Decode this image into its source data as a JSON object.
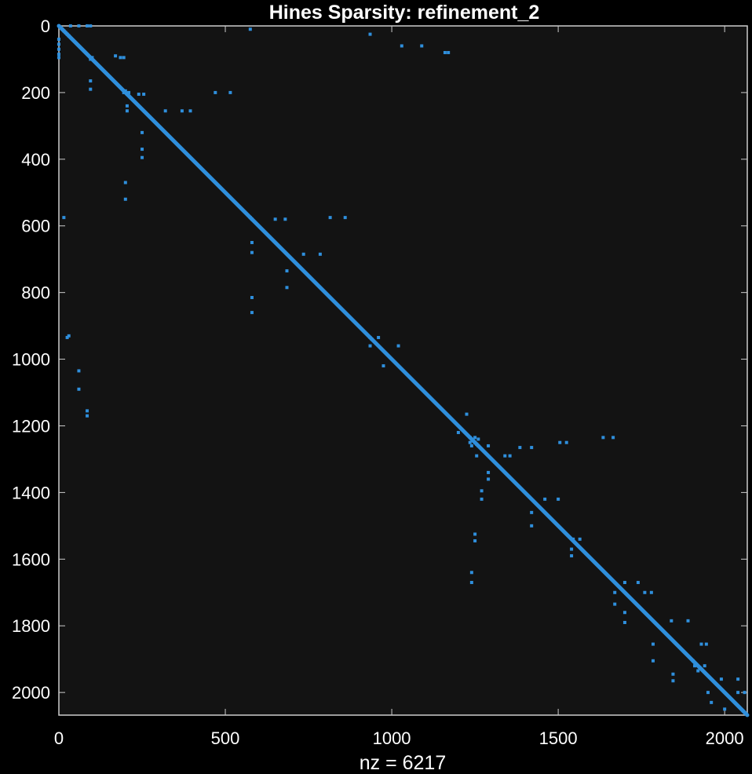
{
  "chart_data": {
    "type": "spy",
    "title": "Hines Sparsity: refinement_2",
    "xlabel": "nz = 6217",
    "ylabel": "",
    "n": 2068,
    "xlim": [
      0,
      2068
    ],
    "ylim": [
      0,
      2068
    ],
    "y_axis_reversed": true,
    "grid": false,
    "xticks": [
      0,
      500,
      1000,
      1500,
      2000
    ],
    "yticks": [
      0,
      200,
      400,
      600,
      800,
      1000,
      1200,
      1400,
      1600,
      1800,
      2000
    ],
    "diagonal": {
      "from": 0,
      "to": 2068
    },
    "colors": {
      "background": "#000000",
      "axes": "#131313",
      "marker": "#2f8fdc",
      "text": "#ffffff",
      "axis_line": "#cccccc"
    },
    "nonzeros": [
      [
        0,
        0
      ],
      [
        5,
        5
      ],
      [
        10,
        10
      ],
      [
        15,
        15
      ],
      [
        20,
        20
      ],
      [
        25,
        25
      ],
      [
        30,
        30
      ],
      [
        0,
        40
      ],
      [
        0,
        55
      ],
      [
        0,
        70
      ],
      [
        0,
        85
      ],
      [
        0,
        95
      ],
      [
        35,
        0
      ],
      [
        60,
        0
      ],
      [
        85,
        0
      ],
      [
        95,
        0
      ],
      [
        100,
        95
      ],
      [
        95,
        100
      ],
      [
        170,
        90
      ],
      [
        185,
        95
      ],
      [
        195,
        95
      ],
      [
        95,
        165
      ],
      [
        95,
        190
      ],
      [
        200,
        195
      ],
      [
        195,
        200
      ],
      [
        205,
        205
      ],
      [
        210,
        200
      ],
      [
        205,
        240
      ],
      [
        205,
        255
      ],
      [
        240,
        205
      ],
      [
        255,
        205
      ],
      [
        320,
        255
      ],
      [
        370,
        255
      ],
      [
        395,
        255
      ],
      [
        250,
        320
      ],
      [
        250,
        370
      ],
      [
        250,
        395
      ],
      [
        470,
        200
      ],
      [
        515,
        200
      ],
      [
        200,
        470
      ],
      [
        200,
        520
      ],
      [
        575,
        10
      ],
      [
        935,
        25
      ],
      [
        1030,
        60
      ],
      [
        1090,
        60
      ],
      [
        1160,
        80
      ],
      [
        1170,
        80
      ],
      [
        15,
        575
      ],
      [
        25,
        935
      ],
      [
        575,
        575
      ],
      [
        580,
        580
      ],
      [
        650,
        580
      ],
      [
        680,
        580
      ],
      [
        580,
        650
      ],
      [
        580,
        680
      ],
      [
        580,
        815
      ],
      [
        580,
        860
      ],
      [
        735,
        685
      ],
      [
        785,
        685
      ],
      [
        685,
        735
      ],
      [
        685,
        785
      ],
      [
        815,
        575
      ],
      [
        860,
        575
      ],
      [
        935,
        935
      ],
      [
        940,
        940
      ],
      [
        935,
        960
      ],
      [
        960,
        935
      ],
      [
        1020,
        960
      ],
      [
        975,
        1020
      ],
      [
        60,
        1035
      ],
      [
        60,
        1090
      ],
      [
        85,
        1155
      ],
      [
        85,
        1170
      ],
      [
        30,
        930
      ],
      [
        1225,
        1165
      ],
      [
        1200,
        1220
      ],
      [
        1235,
        1235
      ],
      [
        1240,
        1240
      ],
      [
        1245,
        1245
      ],
      [
        1250,
        1250
      ],
      [
        1255,
        1255
      ],
      [
        1260,
        1260
      ],
      [
        1235,
        1250
      ],
      [
        1250,
        1235
      ],
      [
        1260,
        1240
      ],
      [
        1240,
        1260
      ],
      [
        1255,
        1290
      ],
      [
        1290,
        1260
      ],
      [
        1340,
        1290
      ],
      [
        1355,
        1290
      ],
      [
        1290,
        1340
      ],
      [
        1290,
        1360
      ],
      [
        1385,
        1265
      ],
      [
        1420,
        1265
      ],
      [
        1270,
        1395
      ],
      [
        1270,
        1420
      ],
      [
        1505,
        1250
      ],
      [
        1525,
        1250
      ],
      [
        1635,
        1235
      ],
      [
        1665,
        1235
      ],
      [
        1250,
        1525
      ],
      [
        1250,
        1545
      ],
      [
        1240,
        1640
      ],
      [
        1240,
        1670
      ],
      [
        1460,
        1420
      ],
      [
        1500,
        1420
      ],
      [
        1420,
        1460
      ],
      [
        1420,
        1500
      ],
      [
        1545,
        1540
      ],
      [
        1565,
        1540
      ],
      [
        1540,
        1570
      ],
      [
        1540,
        1590
      ],
      [
        1700,
        1670
      ],
      [
        1740,
        1670
      ],
      [
        1760,
        1700
      ],
      [
        1780,
        1700
      ],
      [
        1670,
        1700
      ],
      [
        1670,
        1735
      ],
      [
        1700,
        1760
      ],
      [
        1700,
        1790
      ],
      [
        1840,
        1785
      ],
      [
        1890,
        1785
      ],
      [
        1785,
        1855
      ],
      [
        1785,
        1905
      ],
      [
        1845,
        1945
      ],
      [
        1845,
        1965
      ],
      [
        1930,
        1855
      ],
      [
        1945,
        1855
      ],
      [
        1905,
        1905
      ],
      [
        1910,
        1920
      ],
      [
        1920,
        1935
      ],
      [
        1925,
        1925
      ],
      [
        1940,
        1920
      ],
      [
        1950,
        2000
      ],
      [
        1990,
        1960
      ],
      [
        2040,
        1960
      ],
      [
        1960,
        2030
      ],
      [
        2000,
        2050
      ],
      [
        2040,
        2000
      ],
      [
        2060,
        2000
      ]
    ]
  }
}
